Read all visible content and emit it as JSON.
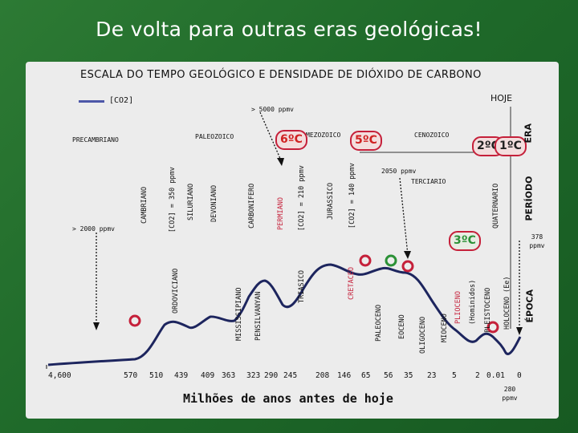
{
  "slide_title": "De volta para outras eras geológicas!",
  "diagram_title": "ESCALA DO TEMPO GEOLÓGICO E DENSIDADE DE DIÓXIDO DE CARBONO",
  "legend": {
    "label": "[CO2]",
    "line_color": "#4d57a8"
  },
  "hoje": "HOJE",
  "era_label": "ERA",
  "periodo_label": "PERÍODO",
  "epoca_label": "ÉPOCA",
  "eras": [
    "PRECAMBRIANO",
    "PALEOZOICO",
    "MEZOZOICO",
    "CENOZOICO"
  ],
  "annotations": {
    "co2_5000": "> 5000 ppmv",
    "co2_2000": "> 2000 ppmv",
    "co2_2050": "2050 ppmv",
    "co2_378": "378 ppmv",
    "co2_280": "280 ppmv"
  },
  "temperatures": {
    "t6": "6ºC",
    "t5": "5ºC",
    "t2": "2ºC",
    "t1": "1ºC",
    "t3": "3ºC"
  },
  "periods_top": [
    "CAMBRIANO",
    "[CO2] = 350 ppmv",
    "SILURIANO",
    "DEVONIANO",
    "CARBONIFERO",
    "PERMIANO",
    "[CO2] = 210 ppmv",
    "JURASSICO",
    "[CO2] = 140 ppmv",
    "TERCIARIO",
    "QUATERNARIO"
  ],
  "periods_bottom": [
    "ORDOVICIANO",
    "MISSISSIPIANO",
    "PENSILVANYAN",
    "TRIASICO",
    "CRETACEO",
    "PALEOCENO",
    "EOCENO",
    "OLIGOCENO",
    "MIOCENO",
    "PLIOCENO",
    "(Hominidos)",
    "PLEISTOCENO",
    "HOLOCENO (Ee)"
  ],
  "x_ticks": [
    "4,600",
    "570",
    "510",
    "439",
    "409",
    "363",
    "323",
    "290",
    "245",
    "208",
    "146",
    "65",
    "56",
    "35",
    "23",
    "5",
    "2",
    "0.01",
    "0"
  ],
  "x_title": "Milhões de anos antes de hoje",
  "colors": {
    "curve": "#1d255e",
    "marker": "#c5203a",
    "green_marker": "#2b9136",
    "background": "#1f6a2a"
  }
}
